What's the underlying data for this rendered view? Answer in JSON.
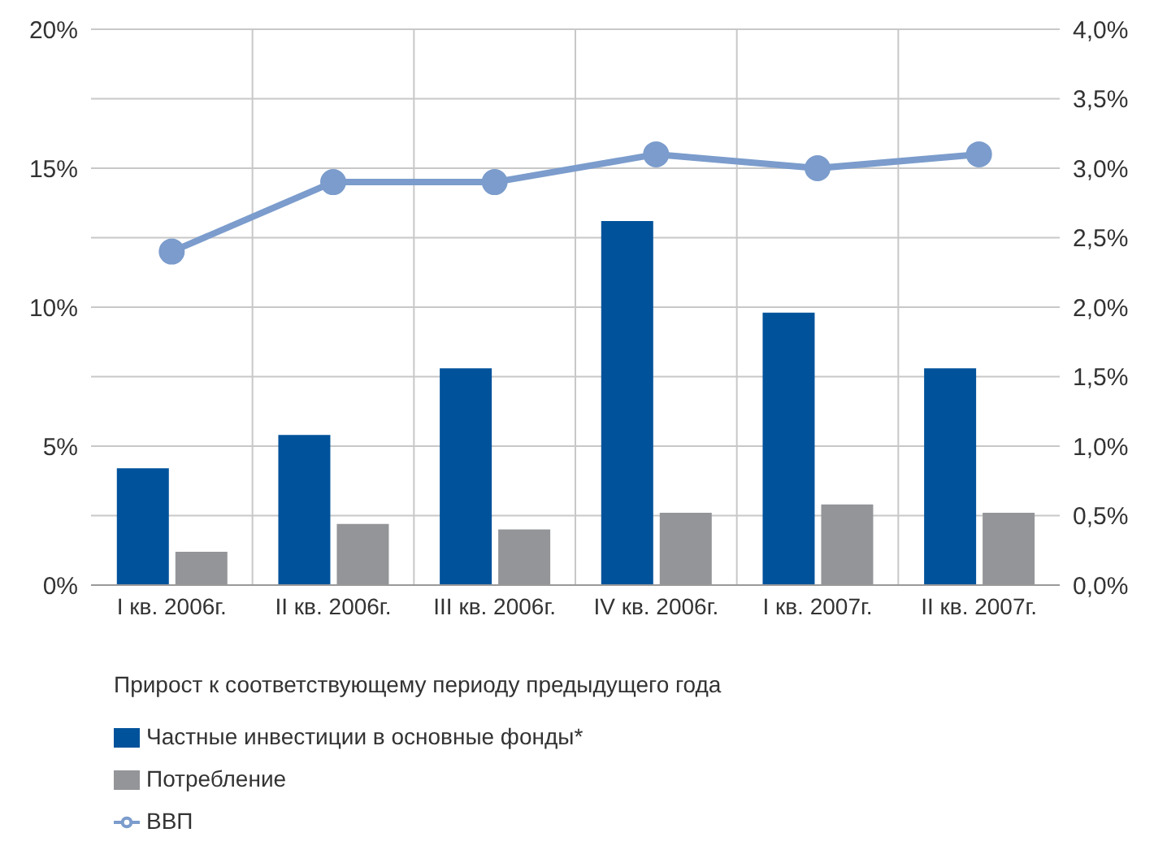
{
  "chart_data": {
    "type": "bar",
    "categories": [
      "I кв. 2006г.",
      "II кв. 2006г.",
      "III кв. 2006г.",
      "IV кв. 2006г.",
      "I кв. 2007г.",
      "II кв. 2007г."
    ],
    "series": [
      {
        "name": "Частные инвестиции в основные фонды*",
        "color": "#00529b",
        "values": [
          4.2,
          5.4,
          7.8,
          13.1,
          9.8,
          7.8
        ]
      },
      {
        "name": "Потребление",
        "color": "#939598",
        "values": [
          1.2,
          2.2,
          2.0,
          2.6,
          2.9,
          2.6
        ]
      },
      {
        "name": "ВВП",
        "type": "line",
        "axis": "y2",
        "color": "#7b9ccc",
        "marker": "circle",
        "values": [
          2.4,
          2.9,
          2.9,
          3.1,
          3.0,
          3.1
        ]
      }
    ],
    "ylim": [
      0,
      20
    ],
    "yticks": [
      {
        "value": 0,
        "label": "0%"
      },
      {
        "value": 2.5,
        "label": null
      },
      {
        "value": 5,
        "label": "5%"
      },
      {
        "value": 7.5,
        "label": null
      },
      {
        "value": 10,
        "label": "10%"
      },
      {
        "value": 12.5,
        "label": null
      },
      {
        "value": 15,
        "label": "15%"
      },
      {
        "value": 17.5,
        "label": null
      },
      {
        "value": 20,
        "label": "20%"
      }
    ],
    "y2lim": [
      0,
      4
    ],
    "y2ticks": [
      {
        "value": 0,
        "label": "0,0%"
      },
      {
        "value": 0.5,
        "label": "0,5%"
      },
      {
        "value": 1,
        "label": "1,0%"
      },
      {
        "value": 1.5,
        "label": "1,5%"
      },
      {
        "value": 2,
        "label": "2,0%"
      },
      {
        "value": 2.5,
        "label": "2,5%"
      },
      {
        "value": 3,
        "label": "3,0%"
      },
      {
        "value": 3.5,
        "label": "3,5%"
      },
      {
        "value": 4,
        "label": "4,0%"
      }
    ],
    "grid": true,
    "legend": "bottom",
    "legend_title": "Прирост к соответствующему периоду  предыдущего года"
  }
}
